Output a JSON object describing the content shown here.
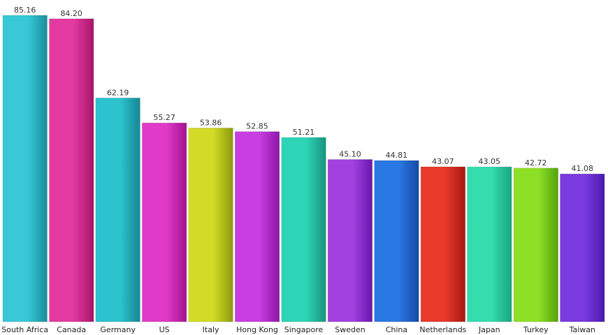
{
  "chart_data": {
    "type": "bar",
    "title": "",
    "xlabel": "",
    "ylabel": "",
    "ylim": [
      0,
      85.16
    ],
    "grid": false,
    "legend": "none",
    "value_labels": true,
    "categories": [
      "South Africa",
      "Canada",
      "Germany",
      "US",
      "Italy",
      "Hong Kong",
      "Singapore",
      "Sweden",
      "China",
      "Netherlands",
      "Japan",
      "Turkey",
      "Taiwan"
    ],
    "values": [
      85.16,
      84.2,
      62.19,
      55.27,
      53.86,
      52.85,
      51.21,
      45.1,
      44.81,
      43.07,
      43.05,
      42.72,
      41.08
    ],
    "value_text": [
      "85.16",
      "84.20",
      "62.19",
      "55.27",
      "53.86",
      "52.85",
      "51.21",
      "45.10",
      "44.81",
      "43.07",
      "43.05",
      "42.72",
      "41.08"
    ],
    "colors": [
      [
        "#39c9d6",
        "#1a8f9c"
      ],
      [
        "#e23aa0",
        "#a8156a"
      ],
      [
        "#2cc3cf",
        "#168893"
      ],
      [
        "#e03ac8",
        "#a51391"
      ],
      [
        "#d2dc26",
        "#8e9a0d"
      ],
      [
        "#c83ee0",
        "#8e16a8"
      ],
      [
        "#2ed4b6",
        "#17957f"
      ],
      [
        "#a341e0",
        "#6a17ad"
      ],
      [
        "#2a78e3",
        "#1649a8"
      ],
      [
        "#e8392a",
        "#a8180f"
      ],
      [
        "#34dcae",
        "#18a57d"
      ],
      [
        "#8ee026",
        "#55a30c"
      ],
      [
        "#7a3ae0",
        "#4b17ad"
      ]
    ]
  }
}
